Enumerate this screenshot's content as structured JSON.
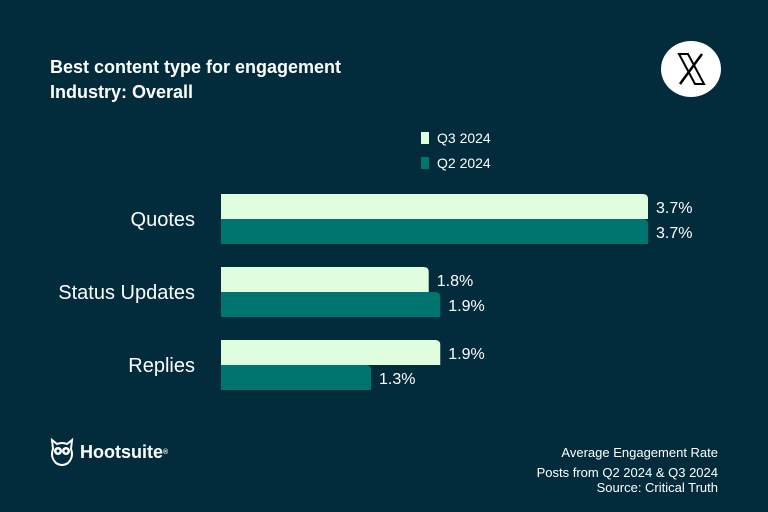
{
  "header": {
    "title": "Best content type for engagement",
    "subtitle": "Industry: Overall",
    "platform_icon": "x-logo-icon"
  },
  "chart_data": {
    "type": "bar",
    "orientation": "horizontal",
    "title": "Best content type for engagement",
    "subtitle": "Industry: Overall",
    "categories": [
      "Quotes",
      "Status Updates",
      "Replies"
    ],
    "series": [
      {
        "name": "Q3 2024",
        "color": "#e0fde0",
        "values": [
          3.7,
          1.8,
          1.9
        ],
        "labels": [
          "3.7%",
          "1.8%",
          "1.9%"
        ]
      },
      {
        "name": "Q2 2024",
        "color": "#00756f",
        "values": [
          3.7,
          1.9,
          1.3
        ],
        "labels": [
          "3.7%",
          "1.9%",
          "1.3%"
        ]
      }
    ],
    "unit": "%",
    "legend": "top",
    "grid": false
  },
  "footer": {
    "brand": "Hootsuite",
    "brand_mark": "®",
    "metric": "Average Engagement Rate",
    "period": "Posts from Q2 2024 & Q3 2024",
    "source": "Source: Critical Truth"
  }
}
